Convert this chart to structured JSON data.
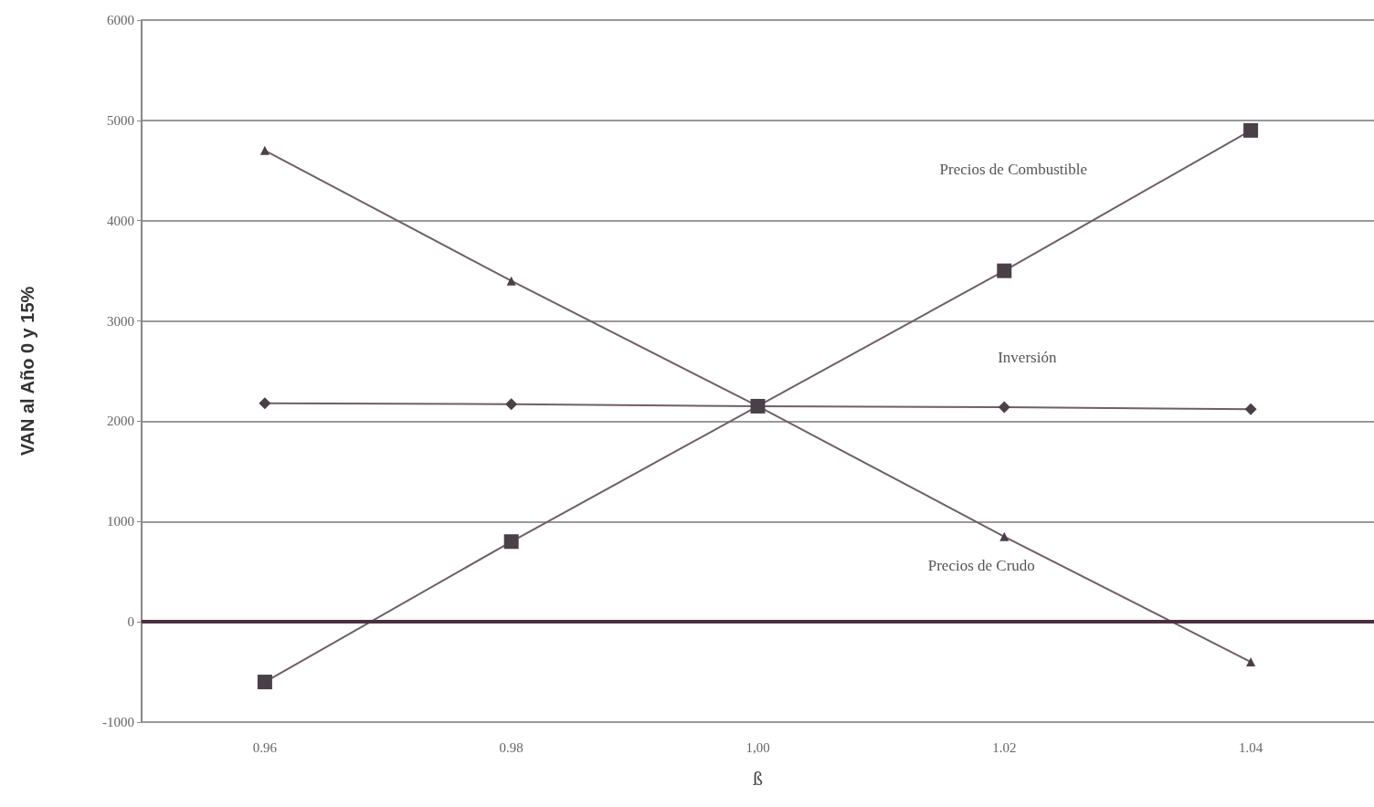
{
  "chart_data": {
    "type": "line",
    "xlabel": "ß",
    "ylabel": "VAN al Año 0 y 15%",
    "categories": [
      "0.96",
      "0.98",
      "1,00",
      "1.02",
      "1.04"
    ],
    "series": [
      {
        "name": "Precios de Combustible",
        "color": "#6e5f68",
        "marker": "square",
        "values": [
          -600,
          800,
          2150,
          3500,
          4900
        ]
      },
      {
        "name": "Inversión",
        "color": "#6e5f68",
        "marker": "diamond",
        "values": [
          2180,
          2170,
          2150,
          2140,
          2120
        ]
      },
      {
        "name": "Precios de Crudo",
        "color": "#6e5f68",
        "marker": "triangle",
        "values": [
          4700,
          3400,
          2150,
          850,
          -400
        ]
      }
    ],
    "ylim": [
      -1000,
      6000
    ],
    "yticks": [
      -1000,
      0,
      1000,
      2000,
      3000,
      4000,
      5000,
      6000
    ],
    "ref_lines": [
      {
        "axis": "y",
        "value": 0,
        "color": "#4a3042"
      }
    ],
    "grid": "y",
    "legend": false,
    "line_style": "solid"
  }
}
